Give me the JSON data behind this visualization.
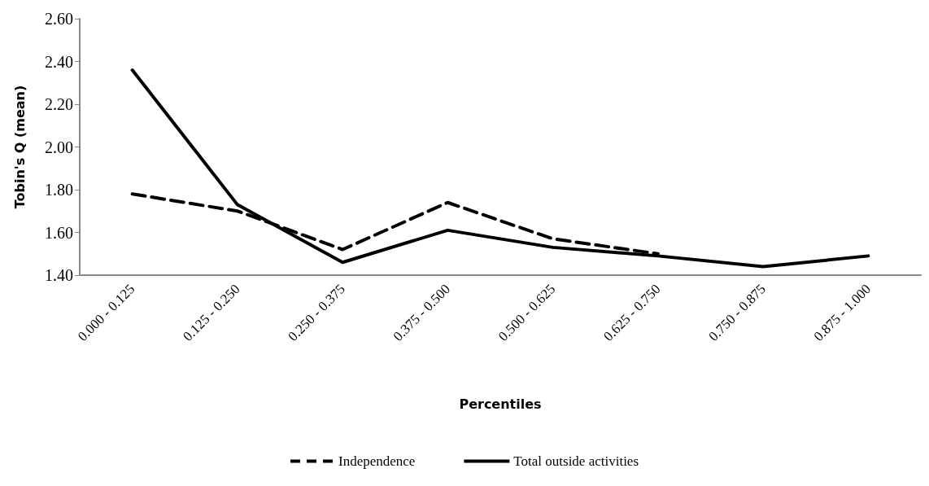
{
  "chart_data": {
    "type": "line",
    "xlabel": "Percentiles",
    "ylabel": "Tobin's Q (mean)",
    "categories": [
      "0.000 - 0.125",
      "0.125 - 0.250",
      "0.250 - 0.375",
      "0.375 - 0.500",
      "0.500 - 0.625",
      "0.625 - 0.750",
      "0.750 - 0.875",
      "0.875 - 1.000"
    ],
    "series": [
      {
        "name": "Independence",
        "color": "#000000",
        "line_style": "dashed",
        "values": [
          1.78,
          1.7,
          1.52,
          1.74,
          1.57,
          1.5,
          null,
          null
        ]
      },
      {
        "name": "Total outside activities",
        "color": "#000000",
        "line_style": "solid",
        "values": [
          2.36,
          1.73,
          1.46,
          1.61,
          1.53,
          1.49,
          1.44,
          1.49
        ]
      }
    ],
    "ylim": [
      1.4,
      2.6
    ],
    "yticks": [
      {
        "value": 1.4,
        "label": "1.40"
      },
      {
        "value": 1.6,
        "label": "1.60"
      },
      {
        "value": 1.8,
        "label": "1.80"
      },
      {
        "value": 2.0,
        "label": "2.00"
      },
      {
        "value": 2.2,
        "label": "2.20"
      },
      {
        "value": 2.4,
        "label": "2.40"
      },
      {
        "value": 2.6,
        "label": "2.60"
      }
    ],
    "grid": false,
    "legend": "bottom",
    "marker": "none"
  }
}
